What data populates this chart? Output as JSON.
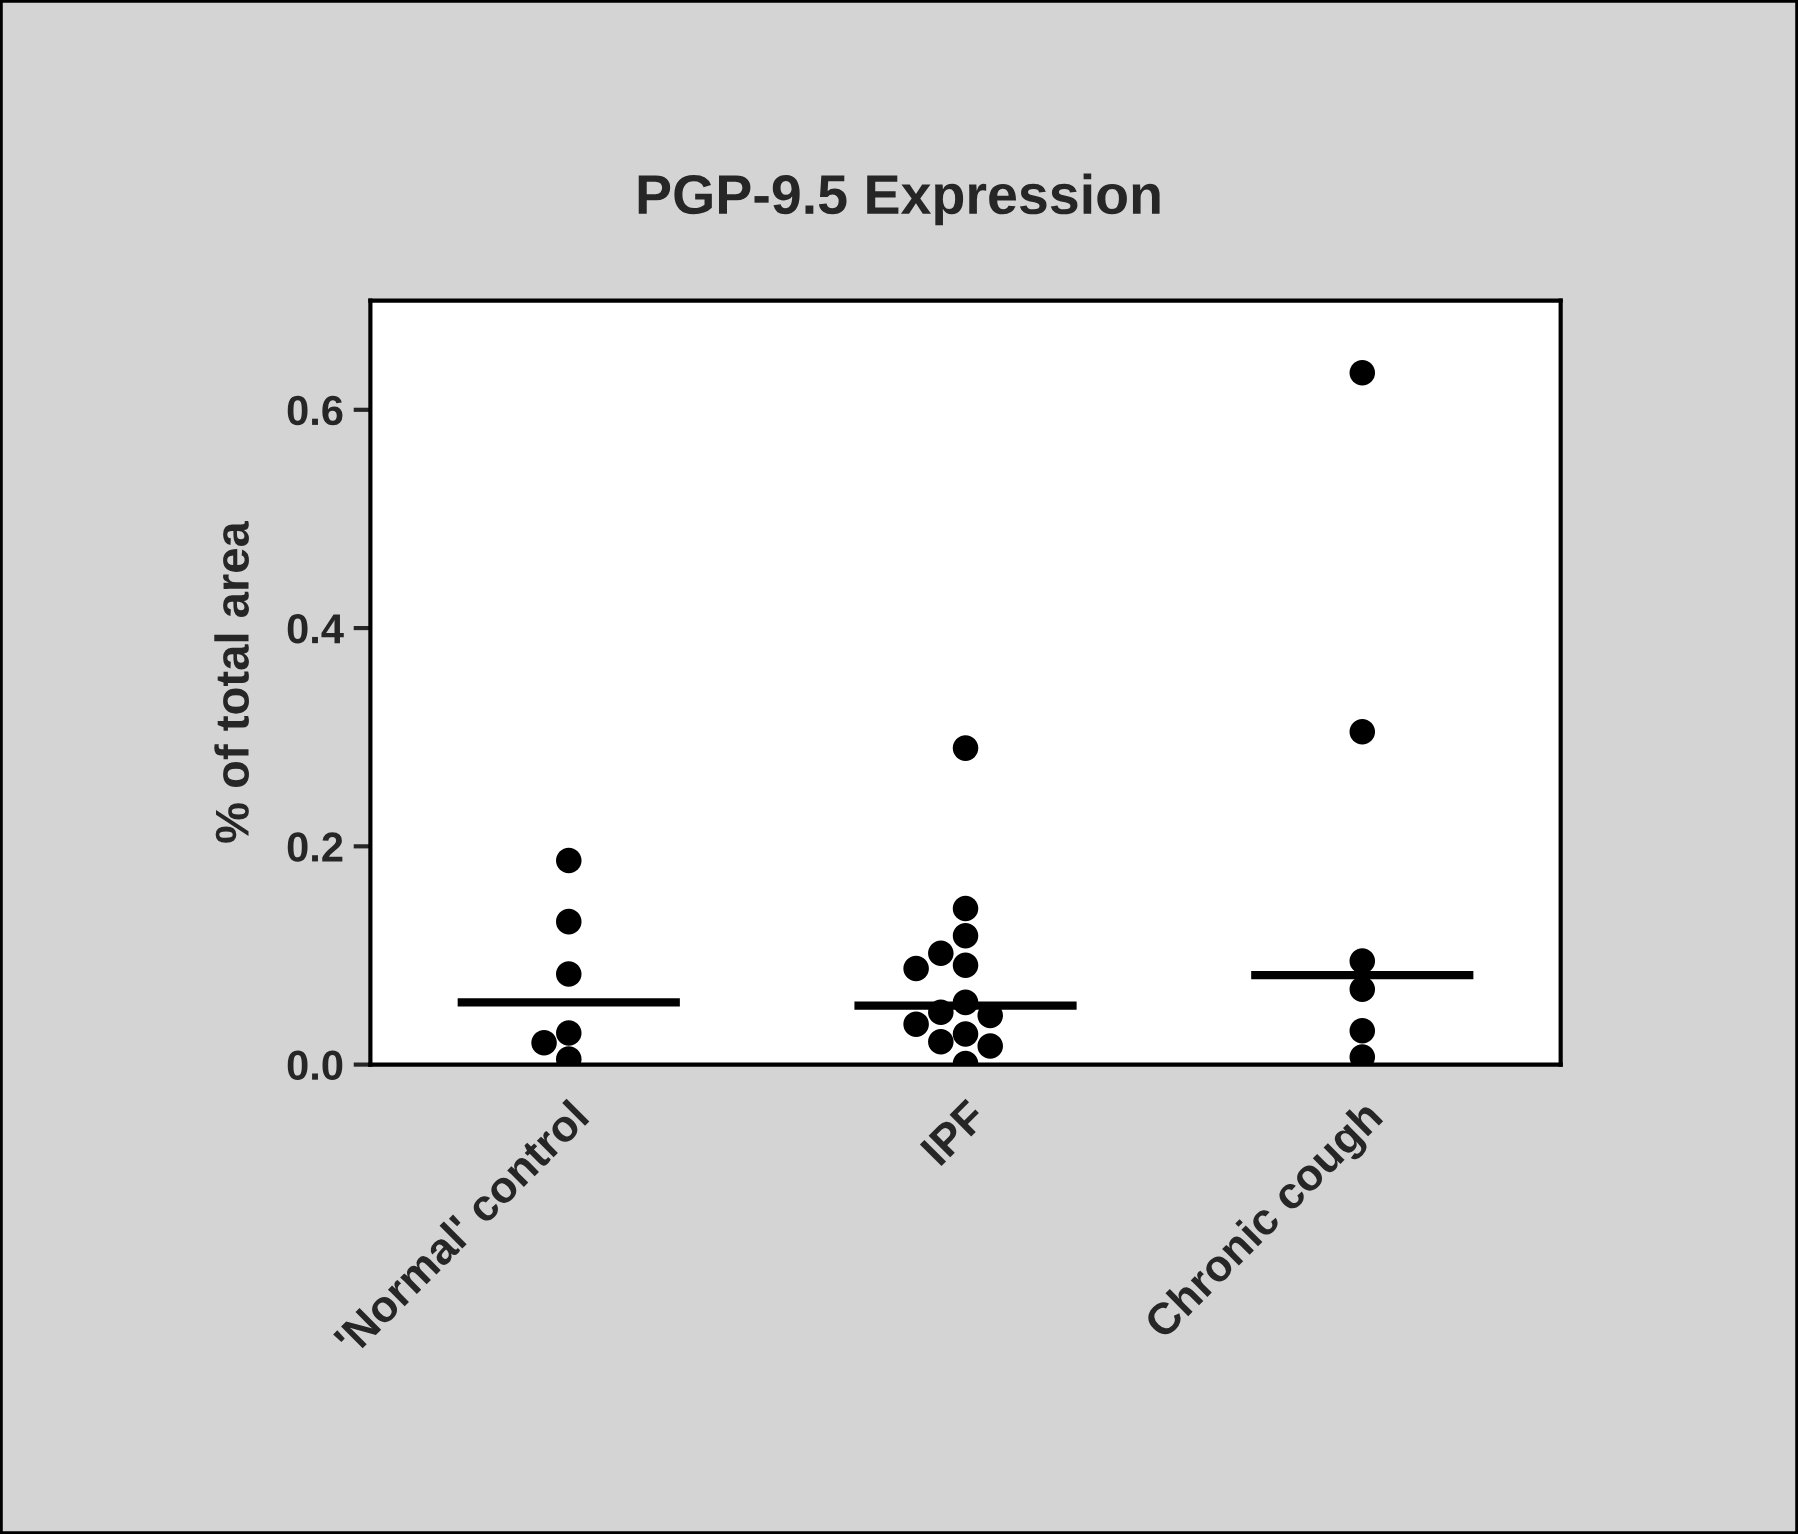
{
  "chart_data": {
    "type": "scatter",
    "title": "PGP-9.5 Expression",
    "ylabel": "% of total area",
    "categories": [
      "'Normal' control",
      "IPF",
      "Chronic cough"
    ],
    "series": [
      {
        "color": "#000000",
        "marker": "circle",
        "x": [
          "'Normal' control",
          "'Normal' control",
          "'Normal' control",
          "'Normal' control",
          "'Normal' control",
          "'Normal' control",
          "IPF",
          "IPF",
          "IPF",
          "IPF",
          "IPF",
          "IPF",
          "IPF",
          "IPF",
          "IPF",
          "IPF",
          "IPF",
          "IPF",
          "IPF",
          "IPF",
          "Chronic cough",
          "Chronic cough",
          "Chronic cough",
          "Chronic cough",
          "Chronic cough",
          "Chronic cough"
        ],
        "values": [
          0.187,
          0.131,
          0.083,
          0.029,
          0.02,
          0.005,
          0.29,
          0.143,
          0.118,
          0.102,
          0.091,
          0.088,
          0.057,
          0.048,
          0.045,
          0.037,
          0.028,
          0.021,
          0.017,
          0.001,
          0.634,
          0.305,
          0.095,
          0.069,
          0.031,
          0.007
        ]
      }
    ],
    "ref_lines": [
      {
        "axis": "y",
        "value": 0.057,
        "color": "#000000",
        "line_style": "solid"
      },
      {
        "axis": "y",
        "value": 0.054,
        "color": "#000000",
        "line_style": "solid"
      },
      {
        "axis": "y",
        "value": 0.082,
        "color": "#000000",
        "line_style": "solid"
      }
    ],
    "ylim": [
      0,
      0.7
    ],
    "yticks": [
      {
        "value": 0,
        "label": "0.0"
      },
      {
        "value": 0.2,
        "label": "0.2"
      },
      {
        "value": 0.4,
        "label": "0.4"
      },
      {
        "value": 0.6,
        "label": "0.6"
      }
    ],
    "grid": false,
    "legend": false
  }
}
